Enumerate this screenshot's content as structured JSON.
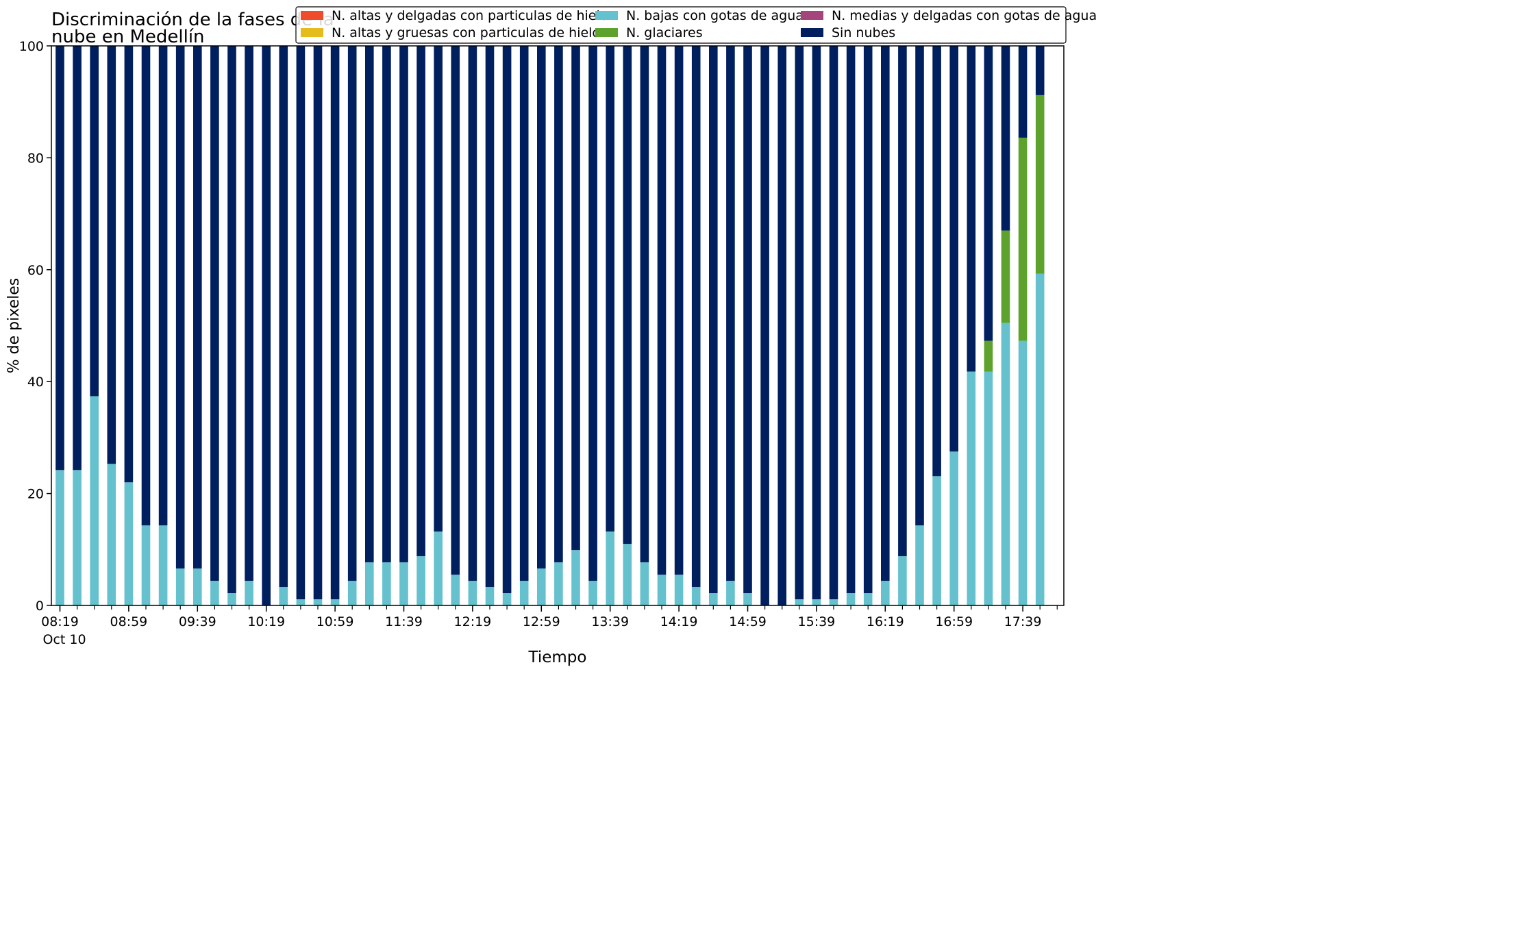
{
  "chart_data": {
    "type": "bar",
    "stacked": true,
    "title": "Discriminación de la fases de la\nnube en Medellín",
    "xlabel": "Tiempo",
    "ylabel": "% de pixeles",
    "ylim": [
      0,
      100
    ],
    "yticks": [
      0,
      20,
      40,
      60,
      80,
      100
    ],
    "xtick_labels": [
      "08:19",
      "08:59",
      "09:39",
      "10:19",
      "10:59",
      "11:39",
      "12:19",
      "12:59",
      "13:39",
      "14:19",
      "14:59",
      "15:39",
      "16:19",
      "16:59",
      "17:39"
    ],
    "xtick_sublabel": "Oct 10",
    "grid": false,
    "legend_position": "top-right",
    "legend_columns": 3,
    "colors": {
      "altas_delgadas": "#ee4c2c",
      "altas_gruesas": "#e6bb1c",
      "bajas": "#64c1cd",
      "glaciares": "#5ea22e",
      "medias_delgadas": "#a4467c",
      "sin_nubes": "#001f5f"
    },
    "series": [
      {
        "name": "N. altas y delgadas con particulas de hielo",
        "key": "altas_delgadas",
        "values": [
          0,
          0,
          0,
          0,
          0,
          0,
          0,
          0,
          0,
          0,
          0,
          0,
          0,
          0,
          0,
          0,
          0,
          0,
          0,
          0,
          0,
          0,
          0,
          0,
          0,
          0,
          0,
          0,
          0,
          0,
          0,
          0,
          0,
          0,
          0,
          0,
          0,
          0,
          0,
          0,
          0,
          0,
          0,
          0,
          0,
          0,
          0,
          0,
          0,
          0,
          0,
          0,
          0,
          0,
          0,
          0,
          0,
          0
        ]
      },
      {
        "name": "N. altas y gruesas con particulas de hielo",
        "key": "altas_gruesas",
        "values": [
          0,
          0,
          0,
          0,
          0,
          0,
          0,
          0,
          0,
          0,
          0,
          0,
          0,
          0,
          0,
          0,
          0,
          0,
          0,
          0,
          0,
          0,
          0,
          0,
          0,
          0,
          0,
          0,
          0,
          0,
          0,
          0,
          0,
          0,
          0,
          0,
          0,
          0,
          0,
          0,
          0,
          0,
          0,
          0,
          0,
          0,
          0,
          0,
          0,
          0,
          0,
          0,
          0,
          0,
          0,
          0,
          0,
          0
        ]
      },
      {
        "name": "N. bajas con gotas de agua",
        "key": "bajas",
        "values": [
          24.2,
          24.2,
          37.4,
          25.3,
          22.0,
          14.3,
          14.3,
          6.6,
          6.6,
          4.4,
          2.2,
          4.4,
          0,
          3.3,
          1.1,
          1.1,
          1.1,
          4.4,
          7.7,
          7.7,
          7.7,
          8.8,
          13.2,
          5.5,
          4.4,
          3.3,
          2.2,
          4.4,
          6.6,
          7.7,
          9.9,
          4.4,
          13.2,
          11.0,
          7.7,
          5.5,
          5.5,
          3.3,
          2.2,
          4.4,
          2.2,
          0,
          0,
          1.1,
          1.1,
          1.1,
          2.2,
          2.2,
          4.4,
          8.8,
          14.3,
          23.1,
          27.5,
          41.8,
          41.8,
          50.5,
          47.3,
          59.3
        ]
      },
      {
        "name": "N. glaciares",
        "key": "glaciares",
        "values": [
          0,
          0,
          0,
          0,
          0,
          0,
          0,
          0,
          0,
          0,
          0,
          0,
          0,
          0,
          0,
          0,
          0,
          0,
          0,
          0,
          0,
          0,
          0,
          0,
          0,
          0,
          0,
          0,
          0,
          0,
          0,
          0,
          0,
          0,
          0,
          0,
          0,
          0,
          0,
          0,
          0,
          0,
          0,
          0,
          0,
          0,
          0,
          0,
          0,
          0,
          0,
          0,
          0,
          0,
          5.5,
          16.5,
          36.3,
          31.9
        ]
      },
      {
        "name": "N. medias y delgadas con gotas de agua",
        "key": "medias_delgadas",
        "values": [
          0,
          0,
          0,
          0,
          0,
          0,
          0,
          0,
          0,
          0,
          0,
          0,
          0,
          0,
          0,
          0,
          0,
          0,
          0,
          0,
          0,
          0,
          0,
          0,
          0,
          0,
          0,
          0,
          0,
          0,
          0,
          0,
          0,
          0,
          0,
          0,
          0,
          0,
          0,
          0,
          0,
          0,
          0,
          0,
          0,
          0,
          0,
          0,
          0,
          0,
          0,
          0,
          0,
          0,
          0,
          0,
          0,
          0
        ]
      },
      {
        "name": "Sin nubes",
        "key": "sin_nubes",
        "values": [
          75.8,
          75.8,
          62.6,
          74.7,
          78.0,
          85.7,
          85.7,
          93.4,
          93.4,
          95.6,
          97.8,
          95.6,
          100,
          96.7,
          98.9,
          98.9,
          98.9,
          95.6,
          92.3,
          92.3,
          92.3,
          91.2,
          86.8,
          94.5,
          95.6,
          96.7,
          97.8,
          95.6,
          93.4,
          92.3,
          90.1,
          95.6,
          86.8,
          89.0,
          92.3,
          94.5,
          94.5,
          96.7,
          97.8,
          95.6,
          97.8,
          100,
          100,
          98.9,
          98.9,
          98.9,
          97.8,
          97.8,
          95.6,
          91.2,
          85.7,
          76.9,
          72.5,
          58.2,
          52.7,
          33.0,
          16.4,
          8.8
        ]
      }
    ]
  }
}
